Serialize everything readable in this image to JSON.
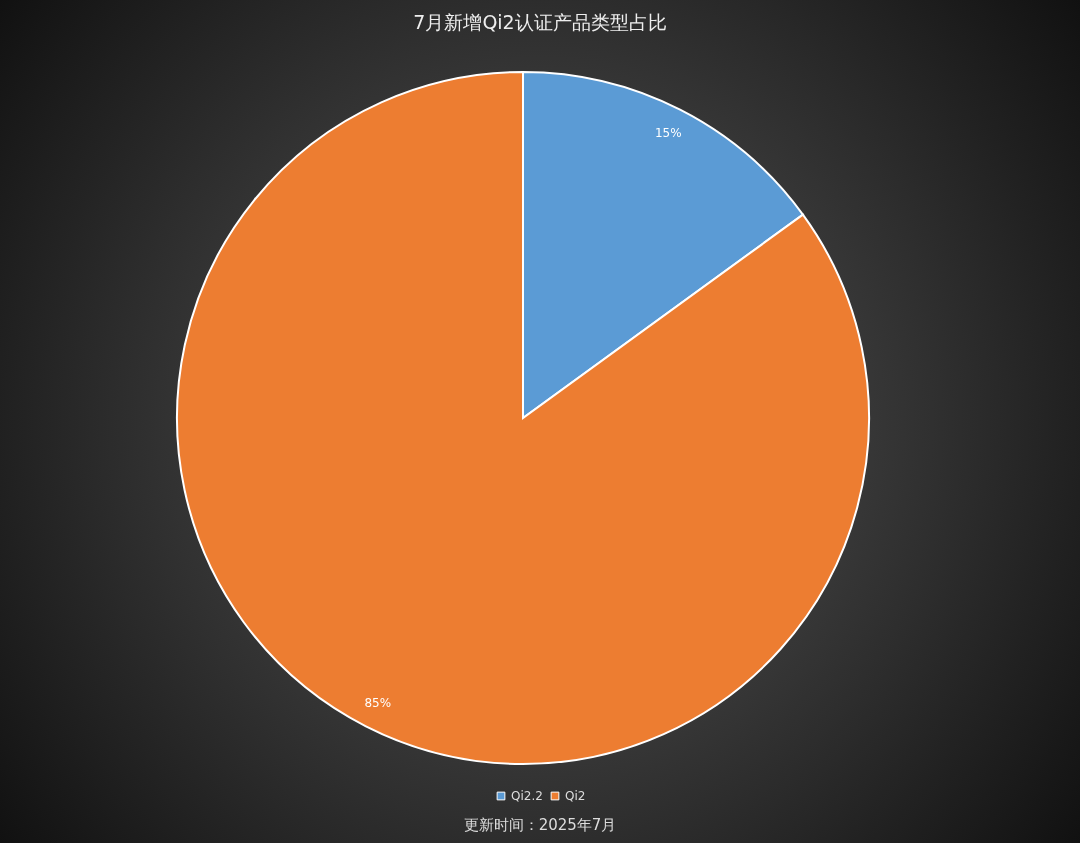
{
  "chart_data": {
    "type": "pie",
    "title": "7月新增Qi2认证产品类型占比",
    "categories": [
      "Qi2.2",
      "Qi2"
    ],
    "values": [
      15,
      85
    ],
    "colors": [
      "#5b9bd5",
      "#ed7d31"
    ],
    "value_labels": [
      "15%",
      "85%"
    ],
    "legend": "bottom",
    "annotations": [
      "更新时间：2025年7月"
    ]
  }
}
